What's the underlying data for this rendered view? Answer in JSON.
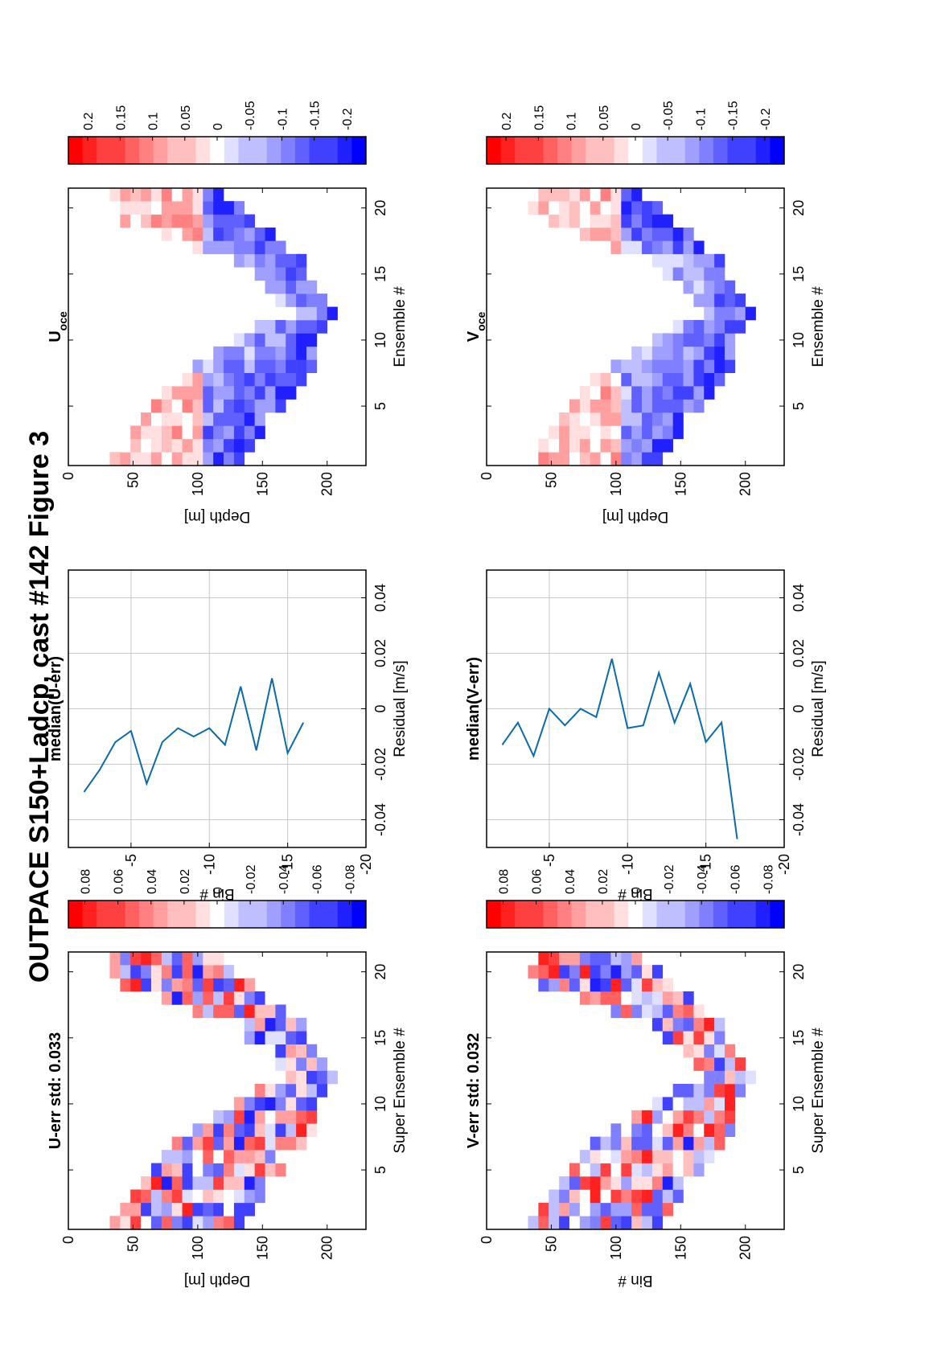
{
  "title": "OUTPACE S150+Ladcp, cast #142  Figure 3",
  "chart_data": [
    {
      "id": "u-err",
      "type": "heatmap",
      "title": "U-err std: 0.033",
      "xlabel": "Super Ensemble #",
      "ylabel": "Depth [m]",
      "xticks": [
        "5",
        "10",
        "15",
        "20"
      ],
      "yticks": [
        "0",
        "50",
        "100",
        "150",
        "200"
      ],
      "xlim": [
        0.5,
        21.5
      ],
      "ylim": [
        0,
        230
      ],
      "colorbar_ticks": [
        "0.08",
        "0.06",
        "0.04",
        "0.02",
        "0",
        "-0.02",
        "-0.04",
        "-0.06",
        "-0.08"
      ],
      "clim": [
        -0.09,
        0.09
      ],
      "cell_depth": 8,
      "profile": {
        "ensembles": [
          1,
          4,
          7,
          10,
          12,
          16,
          19,
          21
        ],
        "top_depth": [
          30,
          60,
          80,
          125,
          170,
          130,
          40,
          30
        ],
        "bottom_depth": [
          135,
          155,
          185,
          195,
          205,
          180,
          145,
          120
        ]
      },
      "palette": "red-white-blue"
    },
    {
      "id": "u-res",
      "type": "line",
      "title": "median(U-err)",
      "xlabel": "Residual [m/s]",
      "ylabel": "Bin #",
      "xticks": [
        "-0.04",
        "-0.02",
        "0",
        "0.02",
        "0.04"
      ],
      "yticks": [
        "-5",
        "-10",
        "-15",
        "-20"
      ],
      "xlim": [
        -0.05,
        0.05
      ],
      "ylim": [
        -20,
        -1
      ],
      "grid": true,
      "series": [
        {
          "x": [
            -0.03,
            -0.022,
            -0.012,
            -0.008,
            -0.027,
            -0.012,
            -0.007,
            -0.01,
            -0.007,
            -0.013,
            0.008,
            -0.015,
            0.011,
            -0.016,
            -0.005
          ],
          "y": [
            -2,
            -3,
            -4,
            -5,
            -6,
            -7,
            -8,
            -9,
            -10,
            -11,
            -12,
            -13,
            -14,
            -15,
            -16
          ]
        }
      ]
    },
    {
      "id": "u-oce",
      "type": "heatmap",
      "title": "U",
      "title_sub": "oce",
      "xlabel": "Ensemble #",
      "ylabel": "Depth [m]",
      "xticks": [
        "5",
        "10",
        "15",
        "20"
      ],
      "yticks": [
        "0",
        "50",
        "100",
        "150",
        "200"
      ],
      "xlim": [
        0.5,
        21.5
      ],
      "ylim": [
        0,
        230
      ],
      "colorbar_ticks": [
        "0.2",
        "0.15",
        "0.1",
        "0.05",
        "0",
        "-0.05",
        "-0.1",
        "-0.15",
        "-0.2"
      ],
      "clim": [
        -0.23,
        0.23
      ],
      "cell_depth": 8,
      "profile": {
        "ensembles": [
          1,
          4,
          7,
          10,
          12,
          16,
          19,
          21
        ],
        "top_depth": [
          30,
          60,
          80,
          125,
          170,
          130,
          40,
          30
        ],
        "bottom_depth": [
          135,
          155,
          185,
          195,
          205,
          180,
          145,
          120
        ]
      },
      "palette": "red-white-blue"
    },
    {
      "id": "v-err",
      "type": "heatmap",
      "title": "V-err std: 0.032",
      "xlabel": "Super Ensemble #",
      "ylabel": "Bin #",
      "xticks": [
        "5",
        "10",
        "15",
        "20"
      ],
      "yticks": [
        "0",
        "50",
        "100",
        "150",
        "200"
      ],
      "xlim": [
        0.5,
        21.5
      ],
      "ylim": [
        0,
        230
      ],
      "colorbar_ticks": [
        "0.08",
        "0.06",
        "0.04",
        "0.02",
        "0",
        "-0.02",
        "-0.04",
        "-0.06",
        "-0.08"
      ],
      "clim": [
        -0.09,
        0.09
      ],
      "cell_depth": 8,
      "profile": {
        "ensembles": [
          1,
          4,
          7,
          10,
          12,
          16,
          19,
          21
        ],
        "top_depth": [
          30,
          60,
          80,
          125,
          170,
          130,
          40,
          30
        ],
        "bottom_depth": [
          135,
          155,
          185,
          195,
          205,
          180,
          145,
          120
        ]
      },
      "palette": "red-white-blue"
    },
    {
      "id": "v-res",
      "type": "line",
      "title": "median(V-err)",
      "xlabel": "Residual [m/s]",
      "ylabel": "Bin #",
      "xticks": [
        "-0.04",
        "-0.02",
        "0",
        "0.02",
        "0.04"
      ],
      "yticks": [
        "-5",
        "-10",
        "-15",
        "-20"
      ],
      "xlim": [
        -0.05,
        0.05
      ],
      "ylim": [
        -20,
        -1
      ],
      "grid": true,
      "series": [
        {
          "x": [
            -0.013,
            -0.005,
            -0.017,
            0,
            -0.006,
            0,
            -0.003,
            0.018,
            -0.007,
            -0.006,
            0.013,
            -0.005,
            0.009,
            -0.012,
            -0.005,
            -0.047
          ],
          "y": [
            -2,
            -3,
            -4,
            -5,
            -6,
            -7,
            -8,
            -9,
            -10,
            -11,
            -12,
            -13,
            -14,
            -15,
            -16,
            -17
          ]
        }
      ]
    },
    {
      "id": "v-oce",
      "type": "heatmap",
      "title": "V",
      "title_sub": "oce",
      "xlabel": "Ensemble #",
      "ylabel": "Depth [m]",
      "xticks": [
        "5",
        "10",
        "15",
        "20"
      ],
      "yticks": [
        "0",
        "50",
        "100",
        "150",
        "200"
      ],
      "xlim": [
        0.5,
        21.5
      ],
      "ylim": [
        0,
        230
      ],
      "colorbar_ticks": [
        "0.2",
        "0.15",
        "0.1",
        "0.05",
        "0",
        "-0.05",
        "-0.1",
        "-0.15",
        "-0.2"
      ],
      "clim": [
        -0.23,
        0.23
      ],
      "cell_depth": 8,
      "profile": {
        "ensembles": [
          1,
          4,
          7,
          10,
          12,
          16,
          19,
          21
        ],
        "top_depth": [
          30,
          60,
          80,
          125,
          170,
          130,
          40,
          30
        ],
        "bottom_depth": [
          135,
          155,
          185,
          195,
          205,
          180,
          145,
          120
        ]
      },
      "palette": "red-white-blue"
    }
  ]
}
